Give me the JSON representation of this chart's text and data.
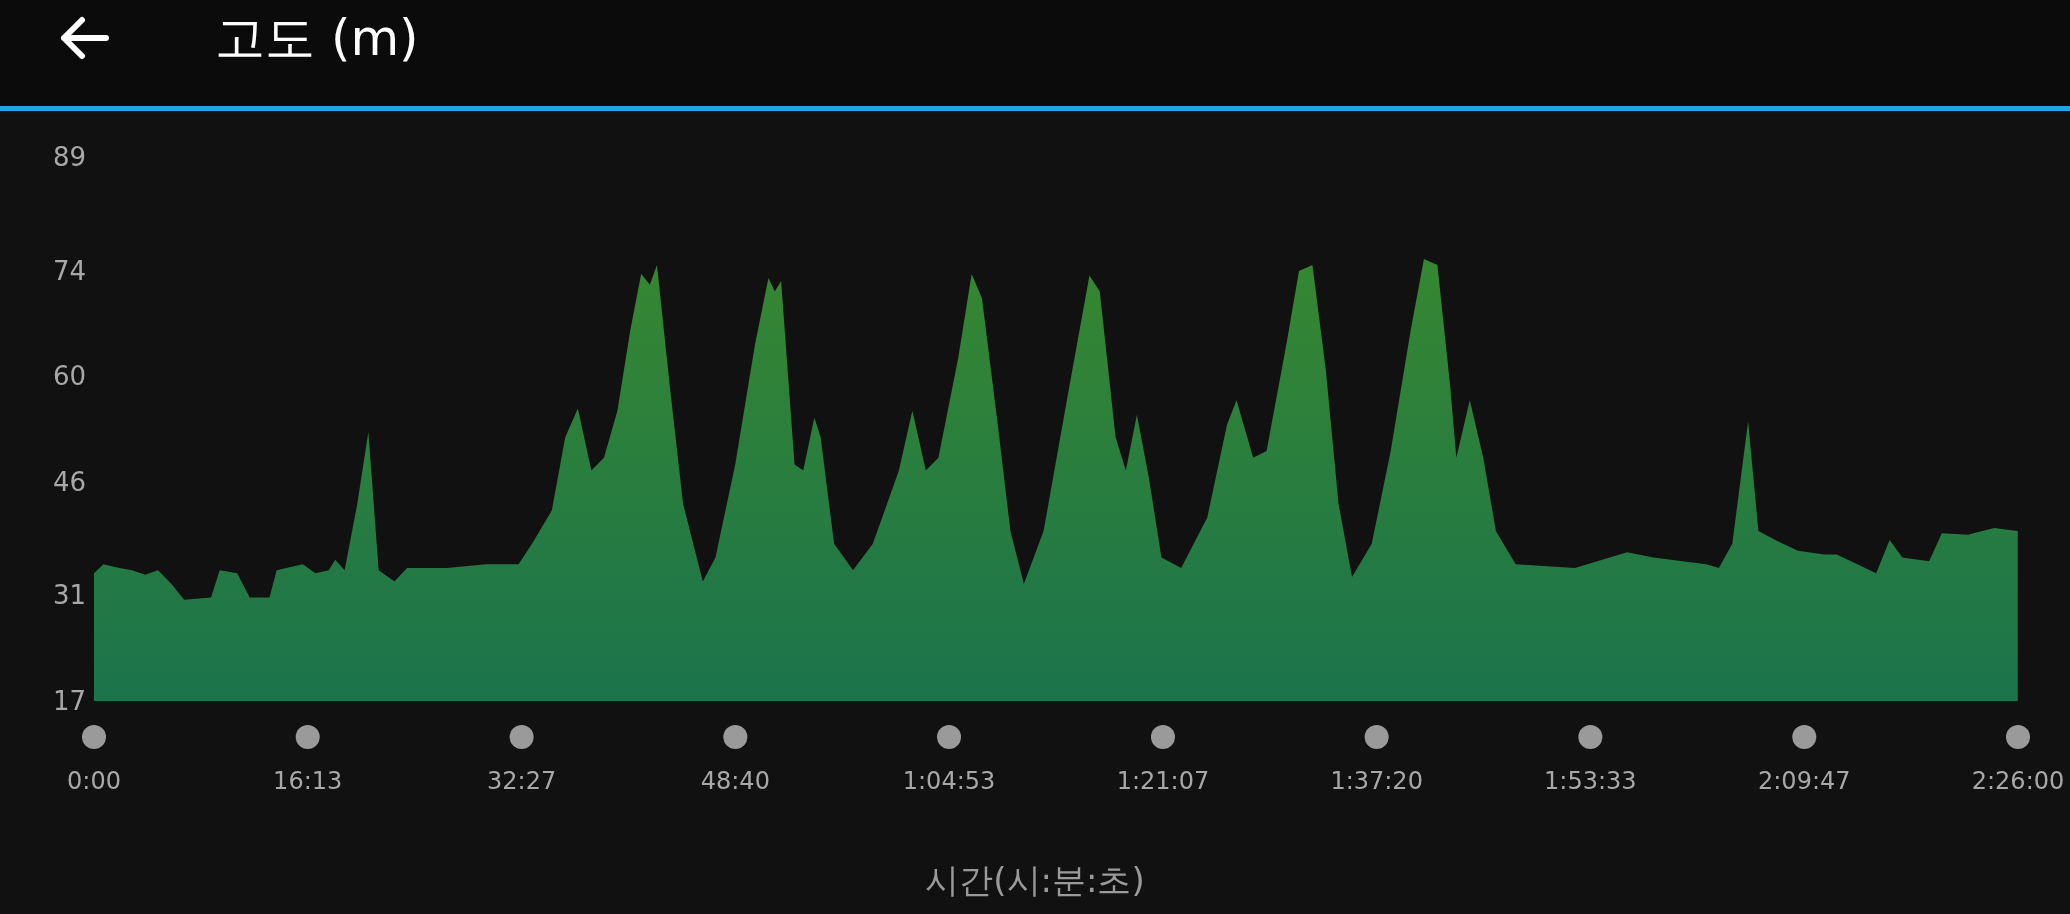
{
  "chart_data": {
    "type": "area",
    "title": "고도 (m)",
    "xlabel": "시간(시:분:초)",
    "xlim": [
      0,
      146
    ],
    "ylim": [
      17,
      89
    ],
    "yticks": [
      17,
      31,
      46,
      60,
      74,
      89
    ],
    "xticks": [
      {
        "value": 0,
        "label": "0:00"
      },
      {
        "value": 16.2167,
        "label": "16:13"
      },
      {
        "value": 32.45,
        "label": "32:27"
      },
      {
        "value": 48.6667,
        "label": "48:40"
      },
      {
        "value": 64.8833,
        "label": "1:04:53"
      },
      {
        "value": 81.1167,
        "label": "1:21:07"
      },
      {
        "value": 97.3333,
        "label": "1:37:20"
      },
      {
        "value": 113.55,
        "label": "1:53:33"
      },
      {
        "value": 129.7833,
        "label": "2:09:47"
      },
      {
        "value": 146,
        "label": "2:26:00"
      }
    ],
    "grid": false,
    "legend": false,
    "x": [
      0,
      0.72,
      1.92,
      2.88,
      3.9,
      4.86,
      5.88,
      6.84,
      8.88,
      9.54,
      10.86,
      11.82,
      13.32,
      13.86,
      15.84,
      16.8,
      17.82,
      18.3,
      19.02,
      19.98,
      20.82,
      21.6,
      22.8,
      23.76,
      26.76,
      29.76,
      32.22,
      33.24,
      34.74,
      35.76,
      36.72,
      37.74,
      38.7,
      39.72,
      40.68,
      41.52,
      42.18,
      42.72,
      43.68,
      44.7,
      46.2,
      47.16,
      48.66,
      50.16,
      51.18,
      51.66,
      52.14,
      53.16,
      53.82,
      54.66,
      55.14,
      56.16,
      57.6,
      59.1,
      61.08,
      62.1,
      63.12,
      64.08,
      65.58,
      66.6,
      67.38,
      68.58,
      69.54,
      70.56,
      72.06,
      74.04,
      75.54,
      76.32,
      77.52,
      78.3,
      79.14,
      80.04,
      81,
      82.5,
      84.48,
      85.98,
      86.7,
      87.96,
      88.98,
      90.48,
      91.44,
      92.46,
      93.48,
      94.44,
      95.46,
      96.96,
      98.4,
      99.9,
      100.92,
      101.94,
      102.9,
      103.38,
      104.4,
      105.42,
      106.38,
      107.88,
      112.38,
      116.34,
      118.32,
      122.34,
      123.3,
      124.32,
      125.52,
      126.3,
      127.8,
      129.3,
      131.28,
      132.24,
      135.24,
      136.26,
      137.22,
      139.26,
      140.22,
      142.2,
      144.18,
      145.98
    ],
    "series": [
      {
        "color": "#4fd646",
        "values": [
          33.9,
          35.1,
          34.6,
          34.3,
          33.7,
          34.3,
          32.5,
          30.4,
          30.7,
          34.3,
          33.9,
          30.7,
          30.7,
          34.3,
          35.1,
          33.9,
          34.3,
          35.7,
          34.3,
          43.1,
          52.6,
          34.3,
          32.8,
          34.6,
          34.6,
          35.1,
          35.1,
          37.8,
          42.2,
          51.9,
          55.7,
          47.5,
          49.2,
          55.4,
          65.9,
          73.5,
          72.1,
          74.7,
          58.9,
          43.1,
          32.8,
          36.0,
          48.3,
          64.2,
          73.0,
          71.2,
          72.6,
          48.3,
          47.5,
          54.5,
          51.9,
          37.8,
          34.3,
          37.8,
          47.5,
          55.4,
          47.5,
          49.2,
          62.4,
          73.5,
          70.3,
          53.6,
          39.5,
          32.5,
          39.5,
          58.9,
          73.3,
          71.2,
          51.9,
          47.5,
          54.9,
          46.6,
          36.0,
          34.6,
          41.3,
          53.6,
          56.8,
          49.2,
          50.1,
          64.2,
          73.9,
          74.7,
          60.7,
          43.1,
          33.4,
          37.8,
          50.1,
          65.9,
          75.5,
          74.7,
          58.9,
          49.2,
          56.8,
          49.2,
          39.5,
          35.1,
          34.6,
          36.7,
          36.0,
          35.1,
          34.6,
          37.8,
          54.0,
          39.5,
          38.1,
          36.9,
          36.4,
          36.4,
          33.9,
          38.3,
          36.0,
          35.5,
          39.2,
          39.0,
          39.9,
          39.5
        ]
      }
    ]
  }
}
